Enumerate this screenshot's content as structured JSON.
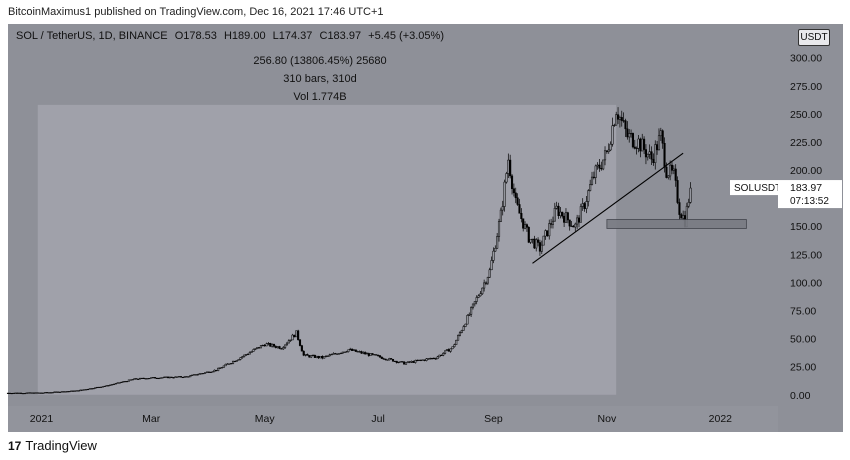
{
  "publisher": "BitcoinMaximus1 published on TradingView.com, Dec 16, 2021 17:46 UTC+1",
  "symbol_line": "SOL / TetherUS, 1D, BINANCE",
  "ohlc": {
    "o_label": "O",
    "o": "178.53",
    "h_label": "H",
    "h": "189.00",
    "l_label": "L",
    "l": "174.37",
    "c_label": "C",
    "c": "183.97",
    "change": "+5.45 (+3.05%)"
  },
  "measure": {
    "line1": "256.80 (13806.45%) 25680",
    "line2": "310 bars, 310d",
    "line3": "Vol 1.774B"
  },
  "currency_button": "USDT",
  "price_label": {
    "symbol": "SOLUSDT",
    "price": "183.97",
    "countdown": "07:13:52"
  },
  "footer": {
    "logo_mark": "17",
    "brand": "TradingView"
  },
  "colors": {
    "background": "#8e9098",
    "candles": "#000000",
    "measure_box": "#a3a5ad",
    "support_zone": "#7a7c84"
  },
  "chart_data": {
    "type": "candlestick",
    "title": "SOL / TetherUS, 1D, BINANCE",
    "y_axis_ticks": [
      0,
      25,
      50,
      75,
      100,
      125,
      150,
      175,
      200,
      225,
      250,
      275,
      300
    ],
    "y_axis_tick_labels": [
      "0.00",
      "25.00",
      "50.00",
      "75.00",
      "100.00",
      "125.00",
      "150.00",
      "175.00",
      "200.00",
      "225.00",
      "250.00",
      "275.00",
      "300.00"
    ],
    "ylim": [
      -10,
      330
    ],
    "x_axis_labels": [
      "2021",
      "Mar",
      "May",
      "Jul",
      "Sep",
      "Nov",
      "2022"
    ],
    "x_axis_dates": [
      "2021-01-01",
      "2021-03-01",
      "2021-05-01",
      "2021-07-01",
      "2021-09-01",
      "2021-11-01",
      "2022-01-01"
    ],
    "xlim": [
      "2020-12-14",
      "2022-02-01"
    ],
    "close_price_path": [
      [
        "2020-12-14",
        1.5
      ],
      [
        "2021-01-01",
        1.6
      ],
      [
        "2021-01-20",
        3.5
      ],
      [
        "2021-02-05",
        8
      ],
      [
        "2021-02-20",
        14
      ],
      [
        "2021-03-01",
        15
      ],
      [
        "2021-03-20",
        16
      ],
      [
        "2021-04-05",
        22
      ],
      [
        "2021-04-20",
        35
      ],
      [
        "2021-05-01",
        45
      ],
      [
        "2021-05-10",
        42
      ],
      [
        "2021-05-18",
        55
      ],
      [
        "2021-05-22",
        35
      ],
      [
        "2021-06-01",
        33
      ],
      [
        "2021-06-15",
        40
      ],
      [
        "2021-07-01",
        34
      ],
      [
        "2021-07-15",
        28
      ],
      [
        "2021-08-01",
        33
      ],
      [
        "2021-08-10",
        42
      ],
      [
        "2021-08-20",
        75
      ],
      [
        "2021-08-30",
        110
      ],
      [
        "2021-09-05",
        160
      ],
      [
        "2021-09-09",
        210
      ],
      [
        "2021-09-13",
        170
      ],
      [
        "2021-09-20",
        140
      ],
      [
        "2021-09-26",
        130
      ],
      [
        "2021-10-05",
        165
      ],
      [
        "2021-10-15",
        150
      ],
      [
        "2021-10-20",
        170
      ],
      [
        "2021-10-25",
        195
      ],
      [
        "2021-11-01",
        215
      ],
      [
        "2021-11-06",
        255
      ],
      [
        "2021-11-12",
        230
      ],
      [
        "2021-11-18",
        225
      ],
      [
        "2021-11-25",
        210
      ],
      [
        "2021-11-30",
        230
      ],
      [
        "2021-12-03",
        200
      ],
      [
        "2021-12-07",
        195
      ],
      [
        "2021-12-10",
        165
      ],
      [
        "2021-12-13",
        155
      ],
      [
        "2021-12-16",
        183.97
      ]
    ],
    "annotations": {
      "measure_range": {
        "from": "2020-12-30",
        "to": "2021-11-06",
        "low": 0,
        "high": 258
      },
      "ascending_support_line": {
        "from": [
          "2021-09-22",
          117
        ],
        "to": [
          "2021-12-12",
          215
        ]
      },
      "support_zone": {
        "from": "2021-11-01",
        "to": "2022-01-15",
        "low": 148,
        "high": 156
      }
    }
  }
}
